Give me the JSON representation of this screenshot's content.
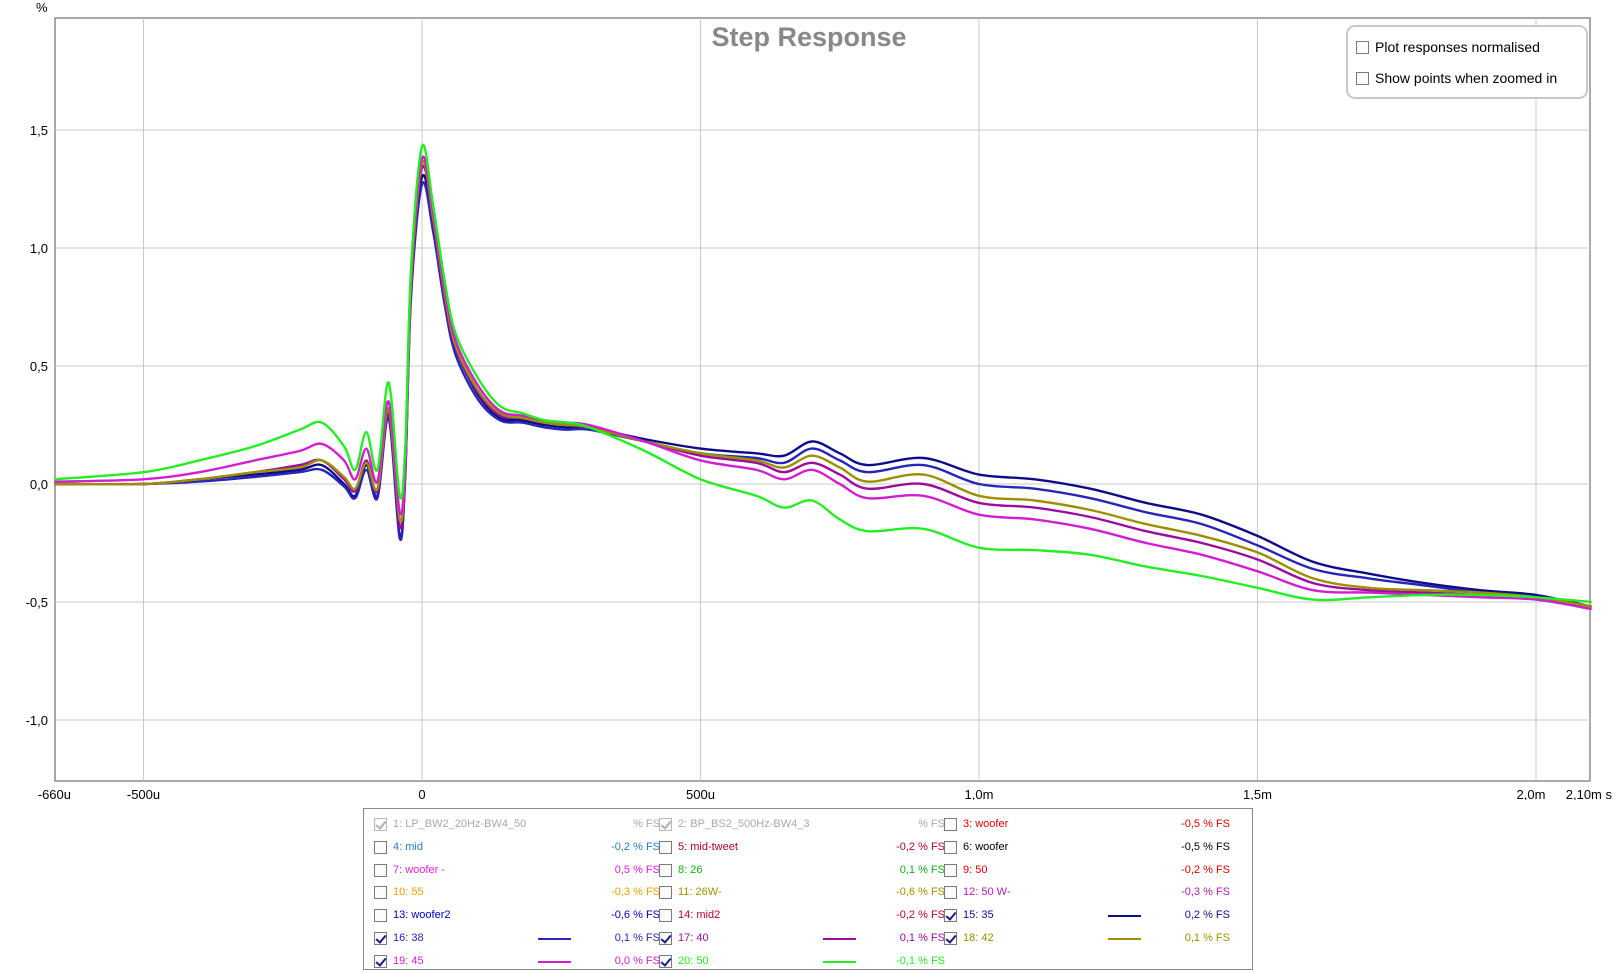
{
  "chart_data": {
    "type": "line",
    "title": "Step Response",
    "ylabel": "%",
    "xlabel": "",
    "xunit": "s",
    "xlim": [
      -0.00066,
      0.0021
    ],
    "ylim": [
      -1.22,
      1.97
    ],
    "grid": true,
    "x_ticks": [
      {
        "value": -0.00066,
        "label": "-660u"
      },
      {
        "value": -0.0005,
        "label": "-500u"
      },
      {
        "value": 0,
        "label": "0"
      },
      {
        "value": 0.0005,
        "label": "500u"
      },
      {
        "value": 0.001,
        "label": "1,0m"
      },
      {
        "value": 0.0015,
        "label": "1,5m"
      },
      {
        "value": 0.002,
        "label": "2,0m"
      },
      {
        "value": 0.0021,
        "label": "2,10m s"
      }
    ],
    "y_ticks": [
      {
        "value": 1.5,
        "label": "1,5"
      },
      {
        "value": 1.0,
        "label": "1,0"
      },
      {
        "value": 0.5,
        "label": "0,5"
      },
      {
        "value": 0.0,
        "label": "0,0"
      },
      {
        "value": -0.5,
        "label": "-0,5"
      },
      {
        "value": -1.0,
        "label": "-1,0"
      }
    ],
    "x": [
      -0.00066,
      -0.0005,
      -0.0004,
      -0.0003,
      -0.00022,
      -0.00018,
      -0.00014,
      -0.00012,
      -0.0001,
      -8e-05,
      -6e-05,
      -4e-05,
      -3e-05,
      -2e-05,
      0.0,
      2e-05,
      4e-05,
      6e-05,
      0.0001,
      0.00014,
      0.00018,
      0.00022,
      0.00026,
      0.0003,
      0.0004,
      0.0005,
      0.0006,
      0.00065,
      0.0007,
      0.00075,
      0.0008,
      0.0009,
      0.001,
      0.0011,
      0.0012,
      0.0013,
      0.0014,
      0.0015,
      0.0016,
      0.0017,
      0.0018,
      0.0019,
      0.002,
      0.0021
    ],
    "series": [
      {
        "name": "15: 35",
        "color": "#0d0d8a",
        "values": [
          0.0,
          0.0,
          0.02,
          0.04,
          0.06,
          0.08,
          0.0,
          -0.05,
          0.08,
          -0.05,
          0.3,
          -0.22,
          0.05,
          0.8,
          1.3,
          1.1,
          0.8,
          0.58,
          0.38,
          0.28,
          0.27,
          0.25,
          0.24,
          0.24,
          0.19,
          0.15,
          0.13,
          0.12,
          0.18,
          0.13,
          0.08,
          0.11,
          0.04,
          0.02,
          -0.02,
          -0.08,
          -0.13,
          -0.22,
          -0.33,
          -0.38,
          -0.42,
          -0.45,
          -0.47,
          -0.52
        ]
      },
      {
        "name": "16: 38",
        "color": "#2626b8",
        "values": [
          0.0,
          0.0,
          0.01,
          0.03,
          0.05,
          0.06,
          -0.01,
          -0.06,
          0.06,
          -0.06,
          0.28,
          -0.23,
          0.04,
          0.78,
          1.27,
          1.07,
          0.77,
          0.55,
          0.36,
          0.27,
          0.26,
          0.24,
          0.23,
          0.23,
          0.18,
          0.13,
          0.11,
          0.09,
          0.15,
          0.1,
          0.05,
          0.08,
          0.0,
          -0.02,
          -0.06,
          -0.12,
          -0.17,
          -0.26,
          -0.36,
          -0.4,
          -0.43,
          -0.46,
          -0.48,
          -0.52
        ]
      },
      {
        "name": "17: 40",
        "color": "#9e0c9e",
        "values": [
          0.0,
          0.0,
          0.02,
          0.05,
          0.08,
          0.1,
          0.02,
          -0.03,
          0.1,
          -0.03,
          0.31,
          -0.18,
          0.07,
          0.82,
          1.34,
          1.12,
          0.8,
          0.58,
          0.39,
          0.29,
          0.28,
          0.26,
          0.25,
          0.24,
          0.18,
          0.12,
          0.09,
          0.05,
          0.09,
          0.04,
          -0.02,
          0.0,
          -0.08,
          -0.1,
          -0.14,
          -0.2,
          -0.25,
          -0.32,
          -0.42,
          -0.45,
          -0.46,
          -0.47,
          -0.48,
          -0.52
        ]
      },
      {
        "name": "18: 42",
        "color": "#9c9000",
        "values": [
          0.0,
          0.0,
          0.02,
          0.05,
          0.07,
          0.1,
          0.03,
          -0.02,
          0.09,
          -0.02,
          0.32,
          -0.15,
          0.08,
          0.84,
          1.36,
          1.13,
          0.82,
          0.59,
          0.4,
          0.3,
          0.28,
          0.26,
          0.25,
          0.24,
          0.18,
          0.13,
          0.1,
          0.07,
          0.12,
          0.07,
          0.01,
          0.04,
          -0.05,
          -0.07,
          -0.11,
          -0.17,
          -0.22,
          -0.29,
          -0.4,
          -0.44,
          -0.45,
          -0.46,
          -0.48,
          -0.52
        ]
      },
      {
        "name": "19: 45",
        "color": "#d21ed2",
        "values": [
          0.01,
          0.02,
          0.05,
          0.1,
          0.14,
          0.17,
          0.1,
          0.02,
          0.15,
          0.01,
          0.35,
          -0.12,
          0.1,
          0.87,
          1.38,
          1.15,
          0.84,
          0.61,
          0.42,
          0.31,
          0.29,
          0.27,
          0.26,
          0.25,
          0.18,
          0.1,
          0.06,
          0.02,
          0.06,
          0.0,
          -0.06,
          -0.05,
          -0.13,
          -0.15,
          -0.19,
          -0.25,
          -0.3,
          -0.37,
          -0.45,
          -0.46,
          -0.47,
          -0.48,
          -0.49,
          -0.53
        ]
      },
      {
        "name": "20: 50",
        "color": "#22ee22",
        "values": [
          0.02,
          0.05,
          0.1,
          0.16,
          0.23,
          0.26,
          0.16,
          0.06,
          0.22,
          0.06,
          0.43,
          -0.05,
          0.16,
          0.9,
          1.43,
          1.18,
          0.87,
          0.64,
          0.45,
          0.33,
          0.3,
          0.27,
          0.26,
          0.24,
          0.14,
          0.02,
          -0.05,
          -0.1,
          -0.07,
          -0.15,
          -0.2,
          -0.19,
          -0.27,
          -0.28,
          -0.3,
          -0.35,
          -0.39,
          -0.44,
          -0.49,
          -0.48,
          -0.47,
          -0.47,
          -0.48,
          -0.5
        ]
      }
    ]
  },
  "options": {
    "normalised_label": "Plot responses normalised",
    "normalised_checked": false,
    "show_points_label": "Show points when zoomed in",
    "show_points_checked": false
  },
  "legend": [
    {
      "label": "1: LP_BW2_20Hz-BW4_50",
      "value": "% FS",
      "color": "#a8a8a8",
      "checked": true,
      "disabled": true,
      "line": false
    },
    {
      "label": "2: BP_BS2_500Hz-BW4_3",
      "value": "% FS",
      "color": "#a8a8a8",
      "checked": true,
      "disabled": true,
      "line": false
    },
    {
      "label": "3: woofer",
      "value": "-0,5 % FS",
      "color": "#e00000",
      "checked": false,
      "disabled": false,
      "line": false
    },
    {
      "label": "4: mid",
      "value": "-0,2 % FS",
      "color": "#1f7fc8",
      "checked": false,
      "disabled": false,
      "line": false
    },
    {
      "label": "5: mid-tweet",
      "value": "-0,2 % FS",
      "color": "#b00030",
      "checked": false,
      "disabled": false,
      "line": false
    },
    {
      "label": "6: woofer",
      "value": "-0,5 % FS",
      "color": "#000000",
      "checked": false,
      "disabled": false,
      "line": false
    },
    {
      "label": "7: woofer -",
      "value": "0,5 % FS",
      "color": "#e020e0",
      "checked": false,
      "disabled": false,
      "line": false
    },
    {
      "label": "8: 26",
      "value": "0,1 % FS",
      "color": "#10b010",
      "checked": false,
      "disabled": false,
      "line": false
    },
    {
      "label": "9: 50",
      "value": "-0,2 % FS",
      "color": "#e00000",
      "checked": false,
      "disabled": false,
      "line": false
    },
    {
      "label": "10: 55",
      "value": "-0,3 % FS",
      "color": "#f0a000",
      "checked": false,
      "disabled": false,
      "line": false
    },
    {
      "label": "11: 26W-",
      "value": "-0,6 % FS",
      "color": "#a09000",
      "checked": false,
      "disabled": false,
      "line": false
    },
    {
      "label": "12: 50 W-",
      "value": "-0,3 % FS",
      "color": "#b020b0",
      "checked": false,
      "disabled": false,
      "line": false
    },
    {
      "label": "13: woofer2",
      "value": "-0,6 % FS",
      "color": "#0000c0",
      "checked": false,
      "disabled": false,
      "line": false
    },
    {
      "label": "14: mid2",
      "value": "-0,2 % FS",
      "color": "#c00030",
      "checked": false,
      "disabled": false,
      "line": false
    },
    {
      "label": "15: 35",
      "value": "0,2 % FS",
      "color": "#0d0d8a",
      "checked": true,
      "disabled": false,
      "line": true
    },
    {
      "label": "16: 38",
      "value": "0,1 % FS",
      "color": "#2626b8",
      "checked": true,
      "disabled": false,
      "line": true
    },
    {
      "label": "17: 40",
      "value": "0,1 % FS",
      "color": "#9e0c9e",
      "checked": true,
      "disabled": false,
      "line": true
    },
    {
      "label": "18: 42",
      "value": "0,1 % FS",
      "color": "#9c9000",
      "checked": true,
      "disabled": false,
      "line": true
    },
    {
      "label": "19: 45",
      "value": "0,0 % FS",
      "color": "#d21ed2",
      "checked": true,
      "disabled": false,
      "line": true
    },
    {
      "label": "20: 50",
      "value": "-0,1 % FS",
      "color": "#22ee22",
      "checked": true,
      "disabled": false,
      "line": true
    }
  ]
}
